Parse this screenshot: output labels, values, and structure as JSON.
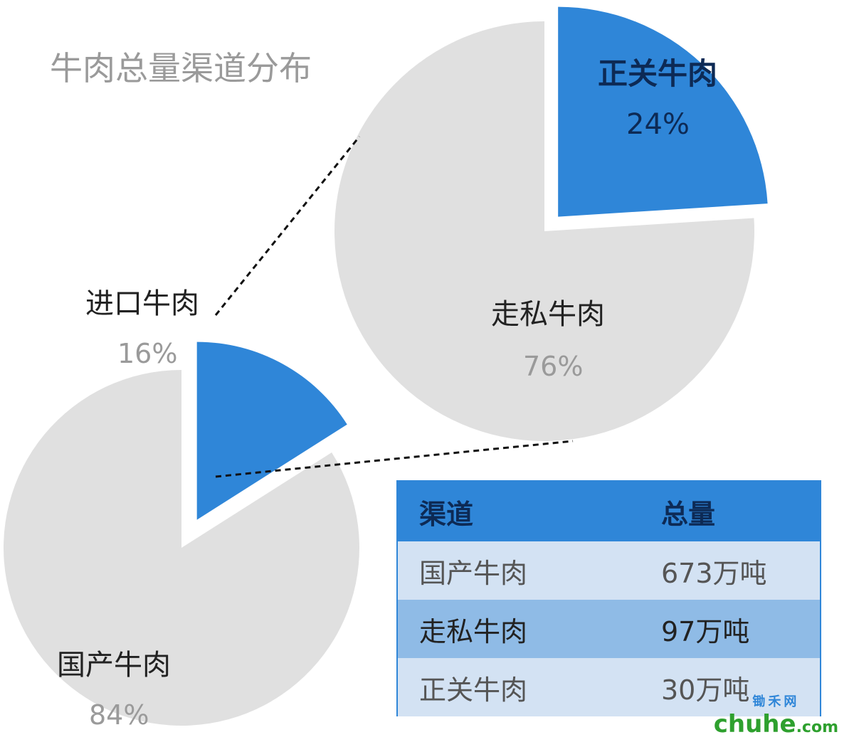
{
  "chart_data": {
    "type": "pie",
    "title": "牛肉总量渠道分布",
    "main_pie": {
      "slices": [
        {
          "label": "进口牛肉",
          "value": 16,
          "pct_label": "16%",
          "color": "#2f86d8",
          "exploded": true
        },
        {
          "label": "国产牛肉",
          "value": 84,
          "pct_label": "84%",
          "color": "#e0e0e0",
          "exploded": false
        }
      ]
    },
    "detail_pie": {
      "slices": [
        {
          "label": "正关牛肉",
          "value": 24,
          "pct_label": "24%",
          "color": "#2f86d8",
          "exploded": true
        },
        {
          "label": "走私牛肉",
          "value": 76,
          "pct_label": "76%",
          "color": "#e0e0e0",
          "exploded": false
        }
      ]
    },
    "table": {
      "headers": [
        "渠道",
        "总量"
      ],
      "rows": [
        [
          "国产牛肉",
          "673万吨"
        ],
        [
          "走私牛肉",
          "97万吨"
        ],
        [
          "正关牛肉",
          "30万吨"
        ]
      ]
    }
  },
  "watermark": {
    "top": "锄禾网",
    "main": "chuhe",
    "suffix": ".com"
  }
}
